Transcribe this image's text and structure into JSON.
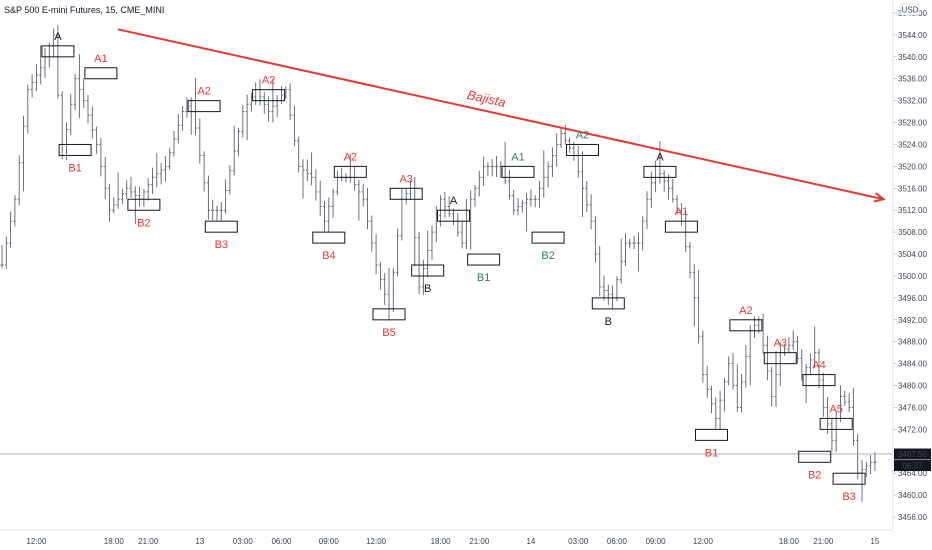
{
  "header": {
    "symbol_title": "S&P 500 E-mini Futures, 15, CME_MINI",
    "currency": "USD"
  },
  "price_badges": {
    "last_price": "3467.50",
    "countdown": "06:37"
  },
  "colors": {
    "red": "#e53935",
    "teal": "#2e7d6b",
    "black": "#131722",
    "bar": "#5d606b",
    "badge": "#131722"
  },
  "chart_data": {
    "type": "ohlc",
    "y_axis": {
      "min": 3454,
      "max": 3550,
      "ticks": [
        "3456.00",
        "3460.00",
        "3464.00",
        "3468.00",
        "3472.00",
        "3476.00",
        "3480.00",
        "3484.00",
        "3488.00",
        "3492.00",
        "3496.00",
        "3500.00",
        "3504.00",
        "3508.00",
        "3512.00",
        "3516.00",
        "3520.00",
        "3524.00",
        "3528.00",
        "3532.00",
        "3536.00",
        "3540.00",
        "3544.00",
        "3548.00"
      ]
    },
    "x_axis": {
      "ticks": [
        "12:00",
        "18:00",
        "21:00",
        "13",
        "03:00",
        "06:00",
        "09:00",
        "12:00",
        "18:00",
        "21:00",
        "14",
        "03:00",
        "06:00",
        "09:00",
        "12:00",
        "18:00",
        "21:00",
        "15"
      ],
      "tick_bar_index": [
        8,
        26,
        34,
        46,
        56,
        65,
        76,
        87,
        102,
        111,
        123,
        134,
        143,
        152,
        163,
        183,
        191,
        203
      ]
    },
    "swing_points": [
      [
        0,
        3502
      ],
      [
        3,
        3514
      ],
      [
        6,
        3534
      ],
      [
        9,
        3538
      ],
      [
        12,
        3544
      ],
      [
        14,
        3522
      ],
      [
        17,
        3536
      ],
      [
        19,
        3532
      ],
      [
        22,
        3524
      ],
      [
        25,
        3512
      ],
      [
        29,
        3516
      ],
      [
        32,
        3514
      ],
      [
        35,
        3518
      ],
      [
        38,
        3520
      ],
      [
        42,
        3530
      ],
      [
        44,
        3532
      ],
      [
        48,
        3512
      ],
      [
        51,
        3512
      ],
      [
        56,
        3530
      ],
      [
        59,
        3534
      ],
      [
        62,
        3530
      ],
      [
        66,
        3534
      ],
      [
        69,
        3520
      ],
      [
        72,
        3518
      ],
      [
        75,
        3510
      ],
      [
        78,
        3518
      ],
      [
        81,
        3518
      ],
      [
        84,
        3514
      ],
      [
        87,
        3502
      ],
      [
        90,
        3494
      ],
      [
        93,
        3514
      ],
      [
        95,
        3516
      ],
      [
        97,
        3498
      ],
      [
        100,
        3508
      ],
      [
        102,
        3514
      ],
      [
        105,
        3510
      ],
      [
        107,
        3506
      ],
      [
        109,
        3514
      ],
      [
        112,
        3520
      ],
      [
        116,
        3520
      ],
      [
        119,
        3512
      ],
      [
        122,
        3514
      ],
      [
        124,
        3514
      ],
      [
        127,
        3520
      ],
      [
        130,
        3526
      ],
      [
        133,
        3522
      ],
      [
        137,
        3510
      ],
      [
        139,
        3498
      ],
      [
        142,
        3496
      ],
      [
        145,
        3506
      ],
      [
        148,
        3506
      ],
      [
        150,
        3514
      ],
      [
        152,
        3520
      ],
      [
        155,
        3516
      ],
      [
        158,
        3510
      ],
      [
        161,
        3496
      ],
      [
        163,
        3482
      ],
      [
        166,
        3474
      ],
      [
        169,
        3484
      ],
      [
        171,
        3476
      ],
      [
        174,
        3490
      ],
      [
        176,
        3492
      ],
      [
        179,
        3478
      ],
      [
        181,
        3486
      ],
      [
        184,
        3488
      ],
      [
        186,
        3482
      ],
      [
        189,
        3486
      ],
      [
        191,
        3476
      ],
      [
        193,
        3470
      ],
      [
        195,
        3478
      ],
      [
        197,
        3476
      ],
      [
        199,
        3464
      ],
      [
        202,
        3466
      ],
      [
        203,
        3466
      ]
    ],
    "last_price": 3467.5,
    "trendline": {
      "label": "Bajista",
      "start": [
        27,
        3545
      ],
      "end": [
        205,
        3514
      ]
    },
    "annotations": [
      {
        "text": "A",
        "color": "black",
        "bar": 13,
        "box": [
          3540,
          3542
        ],
        "label_pos": "above"
      },
      {
        "text": "A1",
        "color": "red",
        "bar": 23,
        "box": [
          3536,
          3538
        ],
        "label_pos": "above"
      },
      {
        "text": "B1",
        "color": "red",
        "bar": 17,
        "box": [
          3522,
          3524
        ],
        "label_pos": "below"
      },
      {
        "text": "B2",
        "color": "red",
        "bar": 33,
        "box": [
          3512,
          3514
        ],
        "label_pos": "below"
      },
      {
        "text": "A2",
        "color": "red",
        "bar": 47,
        "box": [
          3530,
          3532
        ],
        "label_pos": "above"
      },
      {
        "text": "B3",
        "color": "red",
        "bar": 51,
        "box": [
          3508,
          3510
        ],
        "label_pos": "below"
      },
      {
        "text": "A2",
        "color": "red",
        "bar": 62,
        "box": [
          3532,
          3534
        ],
        "label_pos": "above"
      },
      {
        "text": "B4",
        "color": "red",
        "bar": 76,
        "box": [
          3506,
          3508
        ],
        "label_pos": "below"
      },
      {
        "text": "A2",
        "color": "red",
        "bar": 81,
        "box": [
          3518,
          3520
        ],
        "label_pos": "above"
      },
      {
        "text": "A3",
        "color": "red",
        "bar": 94,
        "box": [
          3514,
          3516
        ],
        "label_pos": "above"
      },
      {
        "text": "B5",
        "color": "red",
        "bar": 90,
        "box": [
          3492,
          3494
        ],
        "label_pos": "below"
      },
      {
        "text": "A",
        "color": "black",
        "bar": 105,
        "box": [
          3510,
          3512
        ],
        "label_pos": "above"
      },
      {
        "text": "B",
        "color": "black",
        "bar": 99,
        "box": [
          3500,
          3502
        ],
        "label_pos": "below"
      },
      {
        "text": "A1",
        "color": "teal",
        "bar": 120,
        "box": [
          3518,
          3520
        ],
        "label_pos": "above"
      },
      {
        "text": "B1",
        "color": "teal",
        "bar": 112,
        "box": [
          3502,
          3504
        ],
        "label_pos": "below"
      },
      {
        "text": "B2",
        "color": "teal",
        "bar": 127,
        "box": [
          3506,
          3508
        ],
        "label_pos": "below"
      },
      {
        "text": "A2",
        "color": "teal",
        "bar": 135,
        "box": [
          3522,
          3524
        ],
        "label_pos": "above"
      },
      {
        "text": "B",
        "color": "black",
        "bar": 141,
        "box": [
          3494,
          3496
        ],
        "label_pos": "below"
      },
      {
        "text": "A",
        "color": "black",
        "bar": 153,
        "box": [
          3518,
          3520
        ],
        "label_pos": "above"
      },
      {
        "text": "A1",
        "color": "red",
        "bar": 158,
        "box": [
          3508,
          3510
        ],
        "label_pos": "above"
      },
      {
        "text": "B1",
        "color": "red",
        "bar": 165,
        "box": [
          3470,
          3472
        ],
        "label_pos": "below"
      },
      {
        "text": "A2",
        "color": "red",
        "bar": 173,
        "box": [
          3490,
          3492
        ],
        "label_pos": "above"
      },
      {
        "text": "A3",
        "color": "red",
        "bar": 181,
        "box": [
          3484,
          3486
        ],
        "label_pos": "above"
      },
      {
        "text": "A4",
        "color": "red",
        "bar": 190,
        "box": [
          3480,
          3482
        ],
        "label_pos": "above"
      },
      {
        "text": "B2",
        "color": "red",
        "bar": 189,
        "box": [
          3466,
          3468
        ],
        "label_pos": "below"
      },
      {
        "text": "A5",
        "color": "red",
        "bar": 194,
        "box": [
          3472,
          3474
        ],
        "label_pos": "above"
      },
      {
        "text": "B3",
        "color": "red",
        "bar": 197,
        "box": [
          3462,
          3464
        ],
        "label_pos": "below"
      }
    ]
  }
}
